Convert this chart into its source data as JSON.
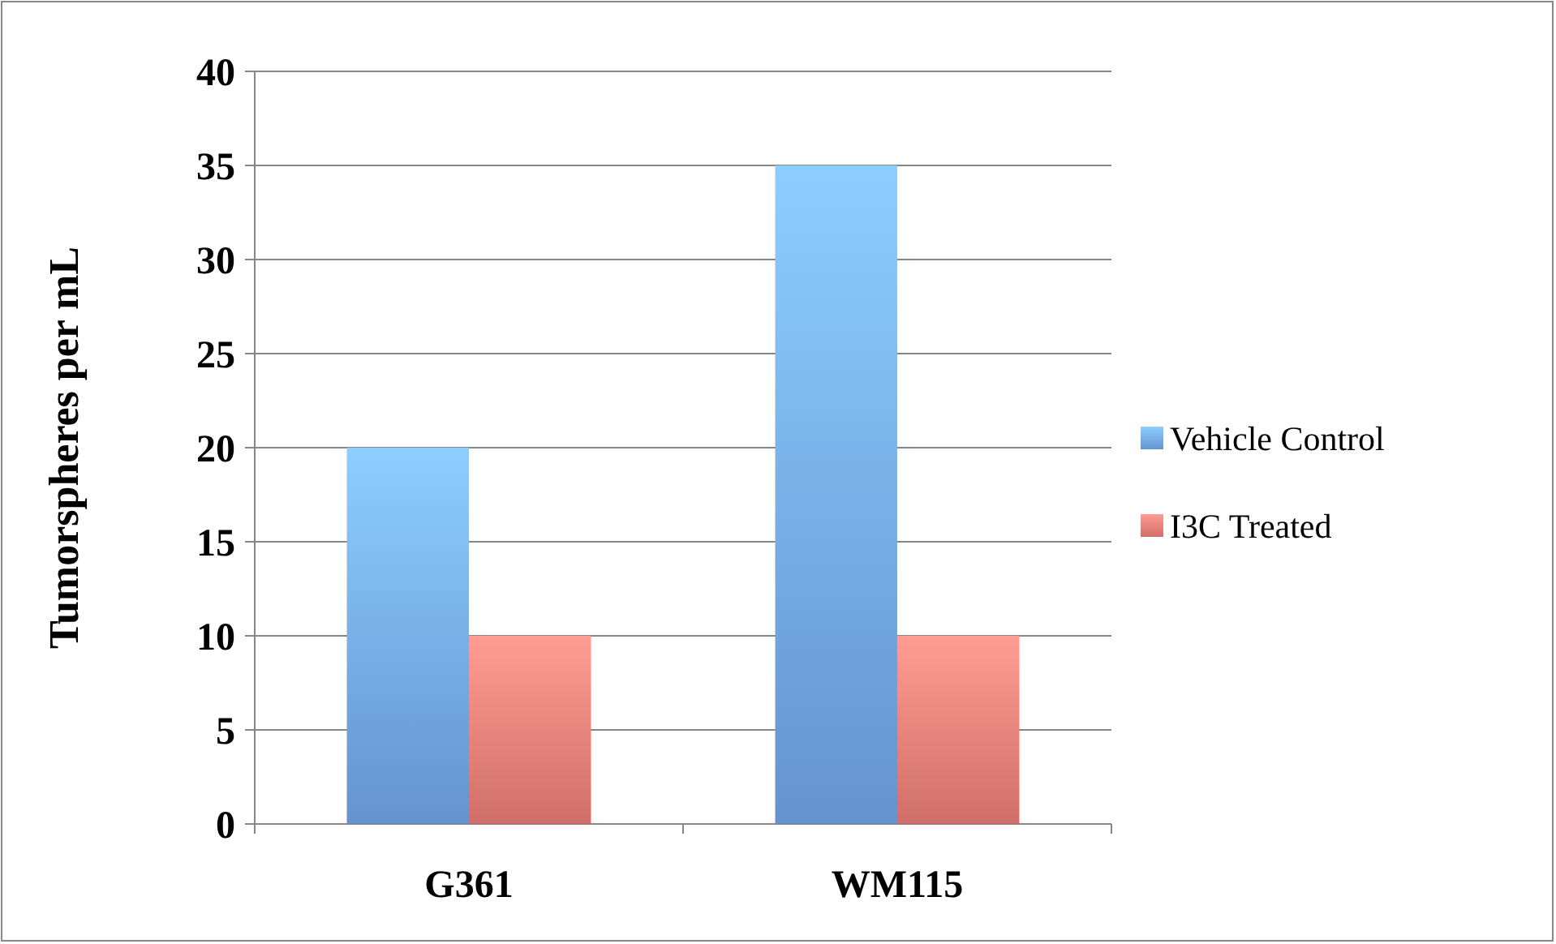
{
  "chart_data": {
    "type": "bar",
    "ylabel": "Tumorspheres per mL",
    "categories": [
      "G361",
      "WM115"
    ],
    "series": [
      {
        "name": "Vehicle Control",
        "color": "#72a6ea",
        "values": [
          20,
          35
        ]
      },
      {
        "name": "I3C Treated",
        "color": "#ec7e77",
        "values": [
          10,
          10
        ]
      }
    ],
    "ylim": [
      0,
      40
    ],
    "yticks": [
      0,
      5,
      10,
      15,
      20,
      25,
      30,
      35,
      40
    ],
    "grid": "y",
    "legend": "right"
  }
}
